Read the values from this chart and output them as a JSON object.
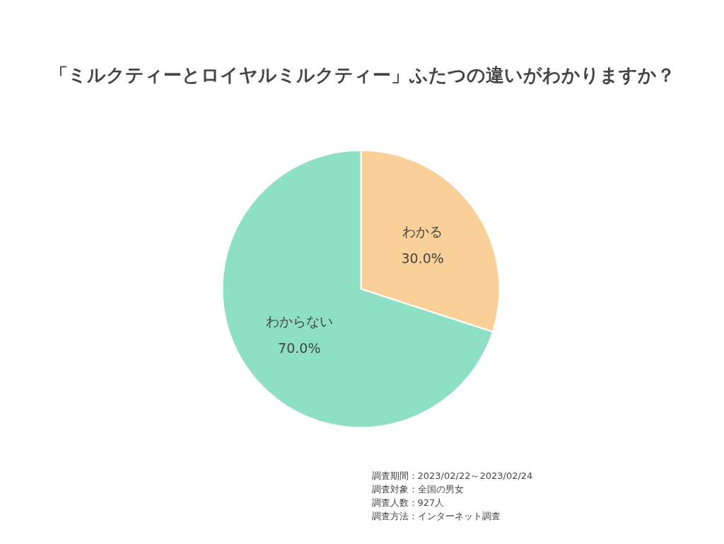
{
  "chart_data": {
    "type": "pie",
    "title": "「ミルクティーとロイヤルミルクティー」ふたつの違いがわかりますか？",
    "categories": [
      "わかる",
      "わからない"
    ],
    "values": [
      30,
      70
    ],
    "colors": [
      "#f8d098",
      "#8de0c4"
    ],
    "value_labels": [
      "30.0%",
      "70.0%"
    ],
    "annotations": [
      "調査期間：2023/02/22～2023/02/24",
      "調査対象：全国の男女",
      "調査人数：927人",
      "調査方法：インターネット調査"
    ]
  }
}
